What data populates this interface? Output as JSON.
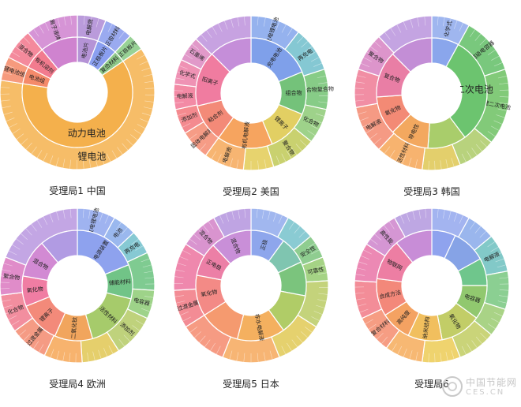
{
  "chart_data": [
    {
      "type": "sunburst",
      "caption": "受理局1 中国",
      "inner": [
        {
          "label": "电池片",
          "value": 6,
          "color": "#b593d6"
        },
        {
          "label": "正极板片",
          "value": 6,
          "color": "#8a9ff0"
        },
        {
          "label": "复合材料",
          "value": 3.5,
          "color": "#8fc98a"
        },
        {
          "label": "动力电池",
          "value": 62,
          "color": "#f4b04c"
        },
        {
          "label": "电池组",
          "value": 5,
          "color": "#f48a6a"
        },
        {
          "label": "有机溶剂",
          "value": 6.5,
          "color": "#f27b8e"
        },
        {
          "label": "",
          "value": 11,
          "color": "#cf83cf"
        }
      ],
      "outer": [
        {
          "label": "电解质",
          "value": 6,
          "color": "#ba9bdb"
        },
        {
          "label": "正极材料",
          "value": 6,
          "color": "#9aaaf0"
        },
        {
          "label": "正极板片",
          "value": 3.5,
          "color": "#98d296"
        },
        {
          "label": "锂电池",
          "value": 62,
          "color": "#f6bd68"
        },
        {
          "label": "锂电池组",
          "value": 5,
          "color": "#f69a7d"
        },
        {
          "label": "混合物",
          "value": 6.5,
          "color": "#f48a9c"
        },
        {
          "label": "离子液体",
          "value": 11,
          "color": "#d694d6"
        }
      ]
    },
    {
      "type": "sunburst",
      "caption": "受理局2 美国",
      "inner": [
        {
          "label": "充电电池",
          "value": 15,
          "color": "#7fa0ea"
        },
        {
          "label": "组合物",
          "value": 10,
          "color": "#74c27a"
        },
        {
          "label": "锂离子",
          "value": 10,
          "color": "#e2cf63"
        },
        {
          "label": "有机电解液",
          "value": 13,
          "color": "#f6a45f"
        },
        {
          "label": "粘合剂",
          "value": 9,
          "color": "#f38a78"
        },
        {
          "label": "阳离子",
          "value": 13,
          "color": "#f07ca0"
        },
        {
          "label": "",
          "value": 10,
          "color": "#c58ed9"
        }
      ],
      "outer": [
        {
          "label": "充电锂电池",
          "value": 10,
          "color": "#95b2ee"
        },
        {
          "label": "再充电",
          "value": 9,
          "color": "#85c8d3"
        },
        {
          "label": "聚合物复合物",
          "value": 8,
          "color": "#87cc87"
        },
        {
          "label": "化合物",
          "value": 7,
          "color": "#9ed28a"
        },
        {
          "label": "聚合物",
          "value": 9,
          "color": "#c9d16f"
        },
        {
          "label": "",
          "value": 6,
          "color": "#e7d36e"
        },
        {
          "label": "电解质",
          "value": 8,
          "color": "#f7b572"
        },
        {
          "label": "固体电解质",
          "value": 6,
          "color": "#f69c86"
        },
        {
          "label": "添加剂",
          "value": 5,
          "color": "#f48a8f"
        },
        {
          "label": "电解液",
          "value": 5,
          "color": "#f38aa5"
        },
        {
          "label": "化学式",
          "value": 5,
          "color": "#ef92b4"
        },
        {
          "label": "石墨烯",
          "value": 5,
          "color": "#e199c9"
        },
        {
          "label": "",
          "value": 12,
          "color": "#c7a2e1"
        }
      ]
    },
    {
      "type": "sunburst",
      "caption": "受理局3 韩国",
      "inner": [
        {
          "label": "",
          "value": 7,
          "color": "#8aa6ec"
        },
        {
          "label": "二次电池",
          "value": 28,
          "color": "#6cc46f"
        },
        {
          "label": "",
          "value": 10,
          "color": "#a9cd6b"
        },
        {
          "label": "导电性",
          "value": 10,
          "color": "#f3a85f"
        },
        {
          "label": "氧化物",
          "value": 10,
          "color": "#f38a75"
        },
        {
          "label": "复合物",
          "value": 12,
          "color": "#e97ea5"
        },
        {
          "label": "",
          "value": 11,
          "color": "#c38ed6"
        }
      ],
      "outer": [
        {
          "label": "化学式",
          "value": 8,
          "color": "#9fb6ef"
        },
        {
          "label": "超级电容器",
          "value": 12,
          "color": "#79c87d"
        },
        {
          "label": "锂二次电池",
          "value": 16,
          "color": "#82ca79"
        },
        {
          "label": "",
          "value": 8,
          "color": "#b8d27d"
        },
        {
          "label": "",
          "value": 8,
          "color": "#e3cf6c"
        },
        {
          "label": "活性材料",
          "value": 10,
          "color": "#f7b36f"
        },
        {
          "label": "电解液",
          "value": 10,
          "color": "#f59a84"
        },
        {
          "label": "",
          "value": 8,
          "color": "#f18ea4"
        },
        {
          "label": "聚合物",
          "value": 8,
          "color": "#dd95cb"
        },
        {
          "label": "",
          "value": 12,
          "color": "#c4a4e2"
        }
      ]
    },
    {
      "type": "sunburst",
      "caption": "受理局4 欧洲",
      "inner": [
        {
          "label": "电源装置",
          "value": 17,
          "color": "#8ea2ee"
        },
        {
          "label": "储能材料",
          "value": 9,
          "color": "#71c487"
        },
        {
          "label": "活性材料",
          "value": 15,
          "color": "#a6cb6b"
        },
        {
          "label": "二氧化钛",
          "value": 10,
          "color": "#f1a55d"
        },
        {
          "label": "锂离子",
          "value": 11,
          "color": "#f38a7a"
        },
        {
          "label": "氧化物",
          "value": 8,
          "color": "#f07da3"
        },
        {
          "label": "混合物",
          "value": 10,
          "color": "#d28ad3"
        },
        {
          "label": "",
          "value": 10,
          "color": "#b19be3"
        }
      ],
      "outer": [
        {
          "label": "充电锂电池",
          "value": 8,
          "color": "#9fb3f0"
        },
        {
          "label": "电池",
          "value": 5,
          "color": "#9ab8ee"
        },
        {
          "label": "再充电",
          "value": 5,
          "color": "#86c9d3"
        },
        {
          "label": "",
          "value": 8,
          "color": "#7fcb91"
        },
        {
          "label": "电容器",
          "value": 6,
          "color": "#9ed389"
        },
        {
          "label": "添加剂",
          "value": 9,
          "color": "#bfd27c"
        },
        {
          "label": "",
          "value": 8,
          "color": "#e5cf6c"
        },
        {
          "label": "",
          "value": 8,
          "color": "#f7b36e"
        },
        {
          "label": "过渡金属",
          "value": 8,
          "color": "#f59b84"
        },
        {
          "label": "化合物",
          "value": 8,
          "color": "#f28e9f"
        },
        {
          "label": "聚合物",
          "value": 8,
          "color": "#e08cc9"
        },
        {
          "label": "",
          "value": 19,
          "color": "#c3a6e4"
        }
      ]
    },
    {
      "type": "sunburst",
      "caption": "受理局5 日本",
      "inner": [
        {
          "label": "正极",
          "value": 10,
          "color": "#8ea6ec"
        },
        {
          "label": "",
          "value": 8,
          "color": "#7fc5b0"
        },
        {
          "label": "",
          "value": 10,
          "color": "#7bc47d"
        },
        {
          "label": "",
          "value": 12,
          "color": "#b0cc67"
        },
        {
          "label": "非水电解液",
          "value": 14,
          "color": "#f4b05f"
        },
        {
          "label": "",
          "value": 12,
          "color": "#f59a6f"
        },
        {
          "label": "氧化物",
          "value": 12,
          "color": "#f38a86"
        },
        {
          "label": "正电极",
          "value": 10,
          "color": "#ec7fa6"
        },
        {
          "label": "混合物",
          "value": 12,
          "color": "#c98fd8"
        }
      ],
      "outer": [
        {
          "label": "",
          "value": 8,
          "color": "#a1b7ef"
        },
        {
          "label": "",
          "value": 6,
          "color": "#8acbd3"
        },
        {
          "label": "安全性",
          "value": 5,
          "color": "#8fcd90"
        },
        {
          "label": "可靠性",
          "value": 5,
          "color": "#a5d385"
        },
        {
          "label": "",
          "value": 10,
          "color": "#c4d37b"
        },
        {
          "label": "",
          "value": 10,
          "color": "#e5d16e"
        },
        {
          "label": "",
          "value": 12,
          "color": "#f7b574"
        },
        {
          "label": "",
          "value": 10,
          "color": "#f69b83"
        },
        {
          "label": "过渡金属",
          "value": 8,
          "color": "#f38c95"
        },
        {
          "label": "",
          "value": 10,
          "color": "#ef88ad"
        },
        {
          "label": "混合物",
          "value": 8,
          "color": "#d994cf"
        },
        {
          "label": "",
          "value": 8,
          "color": "#bfa4e3"
        }
      ]
    },
    {
      "type": "sunburst",
      "caption": "受理局6",
      "inner": [
        {
          "label": "",
          "value": 7,
          "color": "#8fa3ee"
        },
        {
          "label": "",
          "value": 10,
          "color": "#86a3e6"
        },
        {
          "label": "",
          "value": 8,
          "color": "#6fc68c"
        },
        {
          "label": "电容器",
          "value": 10,
          "color": "#91c86f"
        },
        {
          "label": "氧化物",
          "value": 12,
          "color": "#c2cd67"
        },
        {
          "label": "纳米结构",
          "value": 10,
          "color": "#f1bf5e"
        },
        {
          "label": "高纯度",
          "value": 9,
          "color": "#f4a262"
        },
        {
          "label": "合成方法",
          "value": 11,
          "color": "#f3887a"
        },
        {
          "label": "物联网",
          "value": 12,
          "color": "#ed7ea3"
        },
        {
          "label": "",
          "value": 11,
          "color": "#c88dd7"
        }
      ],
      "outer": [
        {
          "label": "",
          "value": 8,
          "color": "#a3b4f0"
        },
        {
          "label": "",
          "value": 6,
          "color": "#9ab6ed"
        },
        {
          "label": "电解液",
          "value": 8,
          "color": "#82c9c8"
        },
        {
          "label": "",
          "value": 8,
          "color": "#8bcf92"
        },
        {
          "label": "",
          "value": 6,
          "color": "#a9d386"
        },
        {
          "label": "",
          "value": 8,
          "color": "#cad479"
        },
        {
          "label": "",
          "value": 8,
          "color": "#efd36e"
        },
        {
          "label": "",
          "value": 8,
          "color": "#f7b873"
        },
        {
          "label": "复合材料",
          "value": 8,
          "color": "#f69d83"
        },
        {
          "label": "",
          "value": 8,
          "color": "#f38d98"
        },
        {
          "label": "",
          "value": 8,
          "color": "#ec89b4"
        },
        {
          "label": "高性能",
          "value": 8,
          "color": "#d596d3"
        },
        {
          "label": "",
          "value": 8,
          "color": "#bea7e3"
        }
      ]
    }
  ],
  "watermark": {
    "line1": "中国节能网",
    "line2": "CES.CN"
  }
}
